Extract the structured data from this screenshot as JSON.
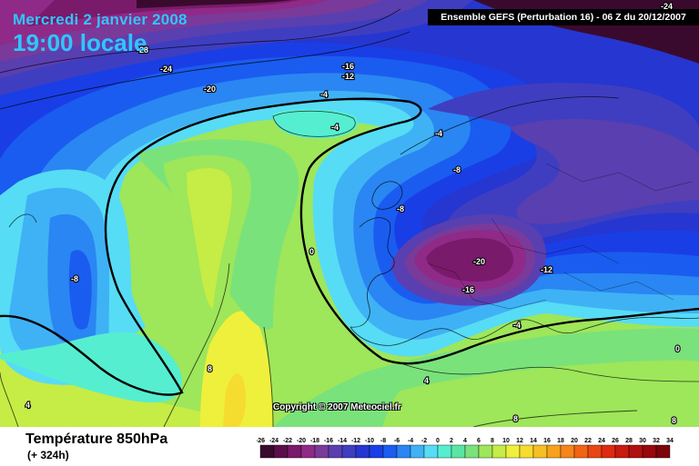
{
  "header": {
    "date": "Mercredi 2 janvier 2008",
    "time": "19:00 locale",
    "model": "Ensemble GEFS (Perturbation 16)  -  06 Z du 20/12/2007"
  },
  "map": {
    "copyright": "Copyright © 2007 Meteociel.fr",
    "contour_labels": [
      "-28",
      "-24",
      "-20",
      "-16",
      "-12",
      "-4",
      "-4",
      "-4",
      "-8",
      "-8",
      "-8",
      "0",
      "-20",
      "-16",
      "-12",
      "-4",
      "0",
      "-24",
      "8",
      "4",
      "4",
      "8",
      "8"
    ]
  },
  "footer": {
    "variable": "Température 850hPa",
    "lead": "(+ 324h)"
  },
  "legend": {
    "labels": [
      "-26",
      "-24",
      "-22",
      "-20",
      "-18",
      "-16",
      "-14",
      "-12",
      "-10",
      "-8",
      "-6",
      "-4",
      "-2",
      "0",
      "2",
      "4",
      "6",
      "8",
      "10",
      "12",
      "14",
      "16",
      "18",
      "20",
      "22",
      "24",
      "26",
      "28",
      "30",
      "32",
      "34"
    ],
    "colors": [
      "#3a0a2e",
      "#5a0f4a",
      "#7a1a6a",
      "#8f2a88",
      "#7a3a9a",
      "#5a3fb0",
      "#3f3ec0",
      "#2636d0",
      "#1a3ee6",
      "#1a5cf0",
      "#2a86f2",
      "#3fb2f5",
      "#57dcf5",
      "#56eed0",
      "#5ae6a2",
      "#7ae27a",
      "#9ee65a",
      "#c6ec46",
      "#eef03c",
      "#f6dc2e",
      "#f6c024",
      "#f6a21c",
      "#f68418",
      "#f06414",
      "#e84612",
      "#de2a10",
      "#c81a10",
      "#b0100e",
      "#96080c",
      "#7a040a"
    ]
  }
}
